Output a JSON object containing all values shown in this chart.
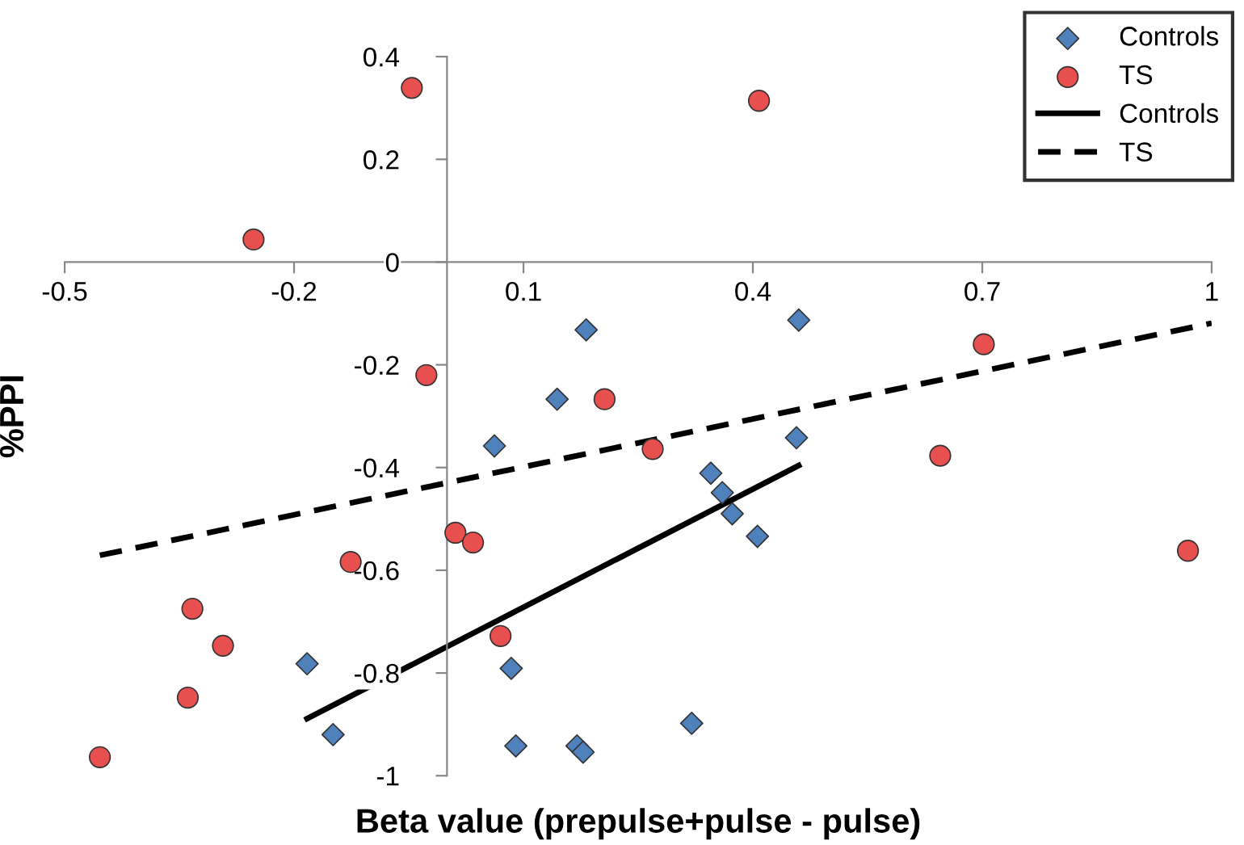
{
  "chart_data": {
    "type": "scatter",
    "xlabel": "Beta value (prepulse+pulse - pulse)",
    "ylabel": "%PPI",
    "xlim": [
      -0.5,
      1
    ],
    "xticks": [
      -0.5,
      -0.2,
      0.1,
      0.4,
      0.7,
      1
    ],
    "ylim": [
      -1,
      0.4
    ],
    "yticks": [
      0.4,
      0.2,
      0,
      -0.2,
      -0.4,
      -0.6,
      -0.8,
      -1
    ],
    "grid": false,
    "legend": "top right",
    "series": [
      {
        "name": "Controls",
        "marker": "diamond",
        "color": "#4f81bd",
        "x": [
          -0.183,
          -0.149,
          0.062,
          0.144,
          0.182,
          0.46,
          0.457,
          0.345,
          0.36,
          0.373,
          0.406,
          0.084,
          0.09,
          0.17,
          0.178,
          0.32
        ],
        "values": [
          -0.782,
          -0.92,
          -0.358,
          -0.267,
          -0.132,
          -0.113,
          -0.342,
          -0.411,
          -0.449,
          -0.49,
          -0.534,
          -0.791,
          -0.942,
          -0.942,
          -0.954,
          -0.898
        ]
      },
      {
        "name": "TS",
        "marker": "circle",
        "color": "#e8504f",
        "x": [
          -0.046,
          -0.253,
          0.408,
          -0.027,
          0.206,
          0.269,
          0.702,
          0.645,
          0.969,
          -0.126,
          0.011,
          0.034,
          0.07,
          -0.333,
          -0.293,
          -0.339,
          -0.454
        ],
        "values": [
          0.339,
          0.044,
          0.314,
          -0.22,
          -0.267,
          -0.364,
          -0.16,
          -0.377,
          -0.562,
          -0.584,
          -0.527,
          -0.546,
          -0.728,
          -0.675,
          -0.747,
          -0.848,
          -0.964
        ]
      },
      {
        "name": "Controls",
        "type": "line",
        "line_style": "solid",
        "color": "#000000",
        "x": [
          -0.183,
          0.46
        ],
        "values": [
          -0.889,
          -0.396
        ]
      },
      {
        "name": "TS",
        "type": "line",
        "line_style": "dashed",
        "color": "#000000",
        "x": [
          -0.454,
          1
        ],
        "values": [
          -0.571,
          -0.119
        ]
      }
    ]
  }
}
